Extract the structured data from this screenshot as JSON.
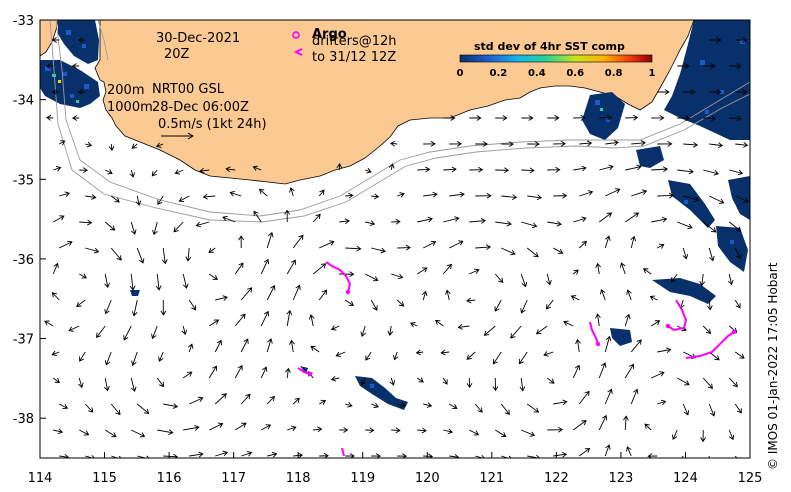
{
  "map": {
    "x_ticks": [
      "114",
      "115",
      "116",
      "117",
      "118",
      "119",
      "120",
      "121",
      "122",
      "123",
      "124",
      "125"
    ],
    "y_ticks": [
      "-33",
      "-34",
      "-35",
      "-36",
      "-37",
      "-38"
    ],
    "x_range": [
      114,
      125
    ],
    "y_range": [
      -33,
      -38.5
    ]
  },
  "annotations": {
    "date": "30-Dec-2021",
    "time": "20Z",
    "isobath_200": "200m",
    "isobath_1000": "1000m",
    "model": "NRT00 GSL",
    "model_time": "28-Dec 06:00Z",
    "scale_label": "0.5m/s (1kt 24h)"
  },
  "legend": {
    "argo_label": "Argo",
    "drifters_label": "drifters@12h",
    "drifters_until": "to 31/12 12Z"
  },
  "colorbar": {
    "title": "std dev of 4hr SST comp",
    "ticks": [
      "0",
      "0.2",
      "0.4",
      "0.6",
      "0.8",
      "1"
    ]
  },
  "credit": "© IMOS 01-Jan-2022 17:05 Hobart",
  "colors": {
    "land": "#fcc992",
    "sst_high": "#08306b",
    "drifter": "#ff00ff",
    "isobath": "#9a9a9a"
  }
}
